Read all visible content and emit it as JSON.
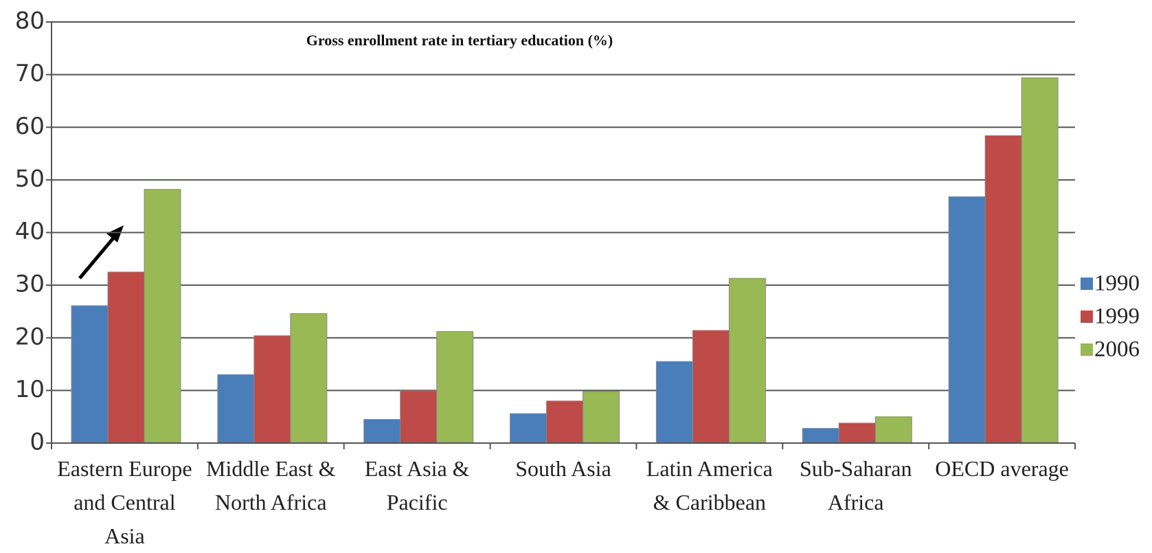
{
  "chart_data": {
    "type": "bar",
    "title": "Gross enrollment rate in tertiary education (%)",
    "categories": [
      "Eastern Europe and Central Asia",
      "Middle East & North Africa",
      "East Asia & Pacific",
      "South Asia",
      "Latin America & Caribbean",
      "Sub-Saharan Africa",
      "OECD average"
    ],
    "series": [
      {
        "name": "1990",
        "color": "#4a7ebb",
        "values": [
          26.1,
          13,
          4.5,
          5.6,
          15.5,
          2.8,
          46.8
        ]
      },
      {
        "name": "1999",
        "color": "#be4b48",
        "values": [
          32.5,
          20.4,
          9.9,
          8,
          21.4,
          3.8,
          58.4
        ]
      },
      {
        "name": "2006",
        "color": "#98b954",
        "values": [
          48.2,
          24.6,
          21.2,
          9.8,
          31.3,
          5,
          69.4
        ]
      }
    ],
    "ylim": [
      0,
      80
    ],
    "yticks": [
      0,
      10,
      20,
      30,
      40,
      50,
      60,
      70,
      80
    ],
    "grid": true,
    "legend": "right"
  }
}
